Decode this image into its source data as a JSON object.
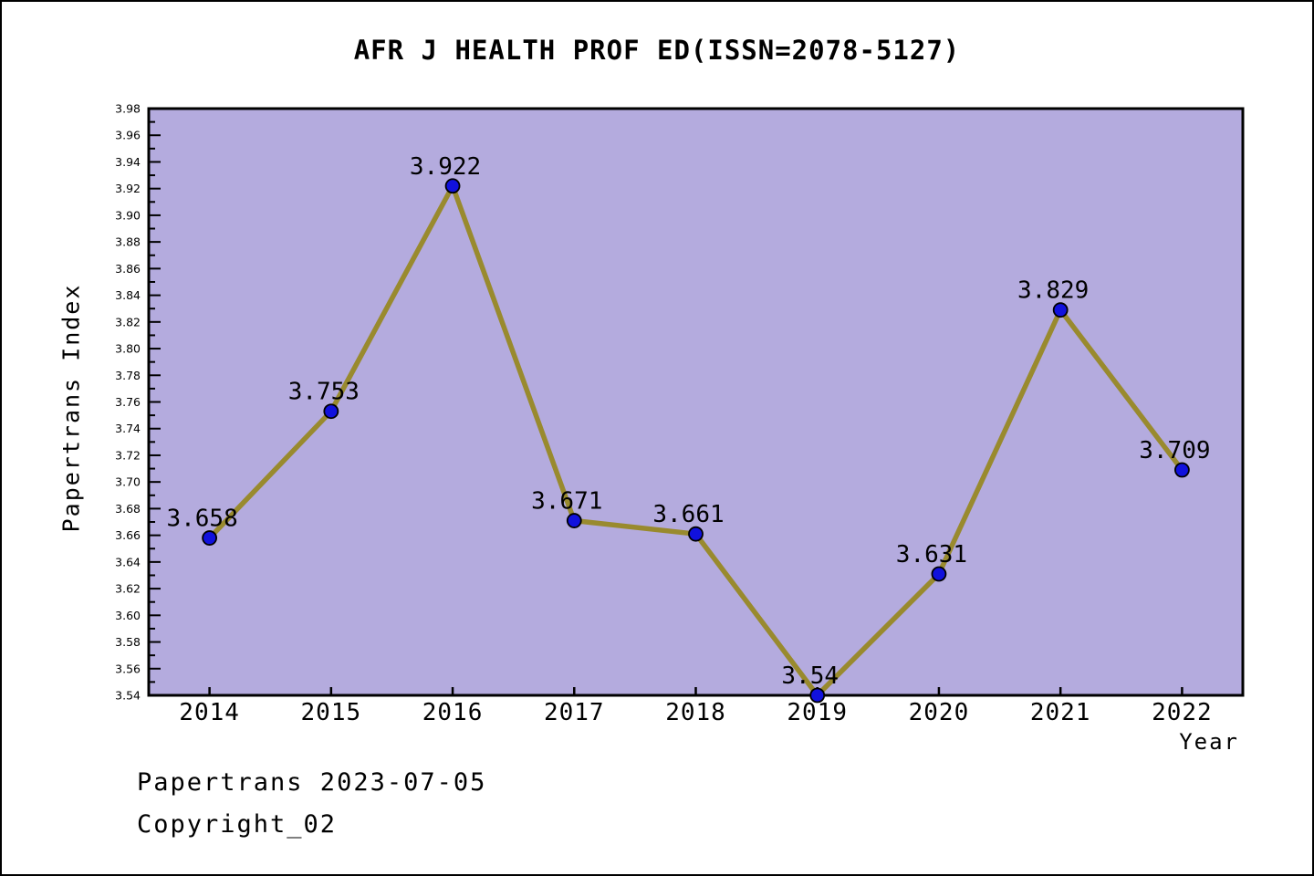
{
  "chart_data": {
    "type": "line",
    "title": "AFR J HEALTH PROF ED(ISSN=2078-5127)",
    "xlabel": "Year",
    "ylabel": "Papertrans Index",
    "categories": [
      2014,
      2015,
      2016,
      2017,
      2018,
      2019,
      2020,
      2021,
      2022
    ],
    "values": [
      3.658,
      3.753,
      3.922,
      3.671,
      3.661,
      3.54,
      3.631,
      3.829,
      3.709
    ],
    "point_labels": [
      "3.658",
      "3.753",
      "3.922",
      "3.671",
      "3.661",
      "3.54",
      "3.631",
      "3.829",
      "3.709"
    ],
    "ylim": [
      3.54,
      3.98
    ],
    "y_major_step": 0.02,
    "y_minor_step": 0.01,
    "xlim": [
      2013.5,
      2022.5
    ],
    "grid": false,
    "legend_position": "none",
    "styles": {
      "plot_background": "#b4abde",
      "line_color": "#998a2e",
      "marker_color": "#1111dd",
      "marker_edge_color": "#000000",
      "axis_color": "#000000",
      "text_color": "#000000",
      "canvas_background": "#ffffff"
    }
  },
  "footer": {
    "line1": "Papertrans 2023-07-05",
    "line2": "Copyright_02"
  }
}
